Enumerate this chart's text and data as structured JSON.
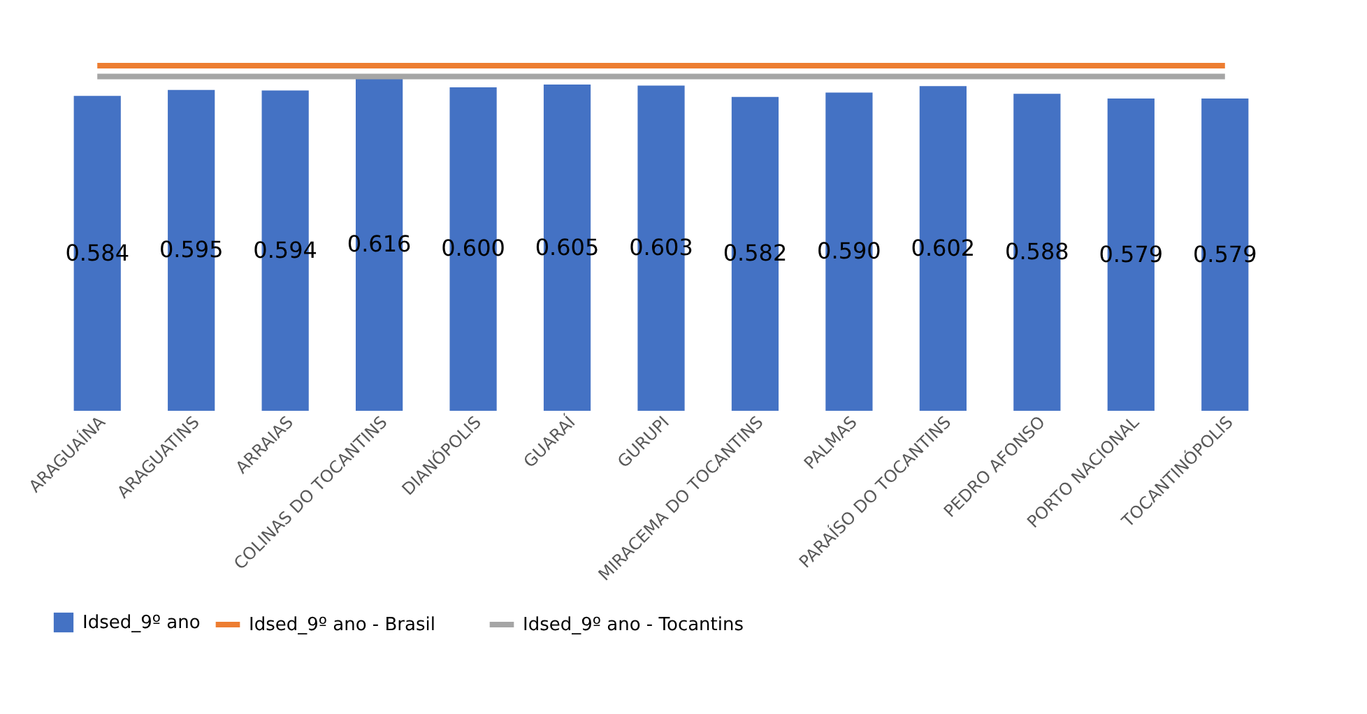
{
  "chart_data": {
    "type": "bar",
    "categories": [
      "ARAGUAÍNA",
      "ARAGUATINS",
      "ARRAIAS",
      "COLINAS DO TOCANTINS",
      "DIANÓPOLIS",
      "GUARAÍ",
      "GURUPI",
      "MIRACEMA DO TOCANTINS",
      "PALMAS",
      "PARAÍSO DO TOCANTINS",
      "PEDRO AFONSO",
      "PORTO NACIONAL",
      "TOCANTINÓPOLIS"
    ],
    "series": [
      {
        "name": "Idsed_9º ano",
        "color": "#4472c4",
        "values": [
          0.584,
          0.595,
          0.594,
          0.616,
          0.6,
          0.605,
          0.603,
          0.582,
          0.59,
          0.602,
          0.588,
          0.579,
          0.579
        ],
        "value_labels": [
          "0.584",
          "0.595",
          "0.594",
          "0.616",
          "0.600",
          "0.605",
          "0.603",
          "0.582",
          "0.590",
          "0.602",
          "0.588",
          "0.579",
          "0.579"
        ]
      },
      {
        "name": "Idsed_9º ano - Brasil",
        "type": "line",
        "color": "#ed7d31",
        "values": [
          0.64,
          0.64,
          0.64,
          0.64,
          0.64,
          0.64,
          0.64,
          0.64,
          0.64,
          0.64,
          0.64,
          0.64,
          0.64
        ]
      },
      {
        "name": "Idsed_9º ano - Tocantins",
        "type": "line",
        "color": "#a5a5a5",
        "values": [
          0.62,
          0.62,
          0.62,
          0.62,
          0.62,
          0.62,
          0.62,
          0.62,
          0.62,
          0.62,
          0.62,
          0.62,
          0.62
        ]
      }
    ],
    "tick_labels": "x",
    "grid": false,
    "legend": "bottom"
  }
}
